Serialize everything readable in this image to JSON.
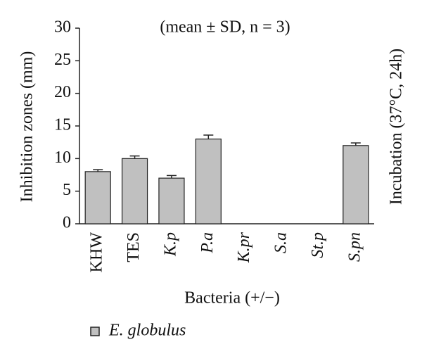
{
  "chart_data": {
    "type": "bar",
    "annotation": "(mean ± SD, n = 3)",
    "y_label": "Inhibition zones (mm)",
    "y2_label": "Incubation (37°C, 24h)",
    "x_label": "Bacteria (+/−)",
    "categories": [
      "KHW",
      "TES",
      "K.p",
      "P.a",
      "K.pr",
      "S.a",
      "St.p",
      "S.pn"
    ],
    "series": [
      {
        "name": "E. globulus",
        "color": "#c0c0c0",
        "values": [
          8,
          10,
          7,
          13,
          0,
          0,
          0,
          12
        ],
        "errors": [
          0.3,
          0.4,
          0.4,
          0.6,
          0,
          0,
          0,
          0.4
        ]
      }
    ],
    "ylim": [
      0,
      30
    ],
    "yticks": [
      0,
      5,
      10,
      15,
      20,
      25,
      30
    ]
  }
}
